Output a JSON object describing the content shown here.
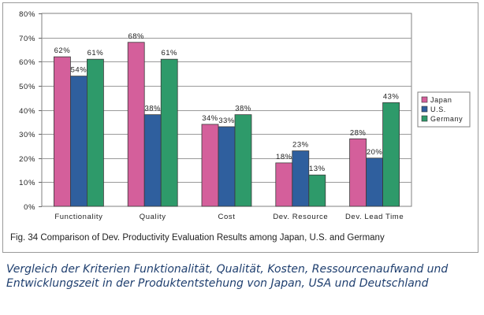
{
  "colors": {
    "Japan": "#d45f9b",
    "U.S.": "#2f5f9e",
    "Germany": "#2e9a6a"
  },
  "chart_data": {
    "type": "bar",
    "categories": [
      "Functionality",
      "Quality",
      "Cost",
      "Dev. Resource",
      "Dev. Lead Time"
    ],
    "series": [
      {
        "name": "Japan",
        "values": [
          62,
          68,
          34,
          18,
          28
        ],
        "labels": [
          "62%",
          "68%",
          "34%",
          "18%",
          "28%"
        ]
      },
      {
        "name": "U.S.",
        "values": [
          54,
          38,
          33,
          23,
          20
        ],
        "labels": [
          "54%",
          "38%",
          "33%",
          "23%",
          "20%"
        ]
      },
      {
        "name": "Germany",
        "values": [
          61,
          61,
          38,
          13,
          43
        ],
        "labels": [
          "61%",
          "61%",
          "38%",
          "13%",
          "43%"
        ]
      }
    ],
    "ylim": [
      0,
      80
    ],
    "yticks": [
      0,
      10,
      20,
      30,
      40,
      50,
      60,
      70,
      80
    ],
    "ytick_labels": [
      "0%",
      "10%",
      "20%",
      "30%",
      "40%",
      "50%",
      "60%",
      "70%",
      "80%"
    ],
    "grid": true,
    "legend_position": "right"
  },
  "caption": "Fig. 34 Comparison of Dev. Productivity Evaluation Results among Japan, U.S. and Germany",
  "subcaption": "Vergleich der Kriterien Funktionalität, Qualität, Kosten, Ressourcenaufwand und Entwicklungszeit in der Produktentstehung von Japan, USA und Deutschland"
}
